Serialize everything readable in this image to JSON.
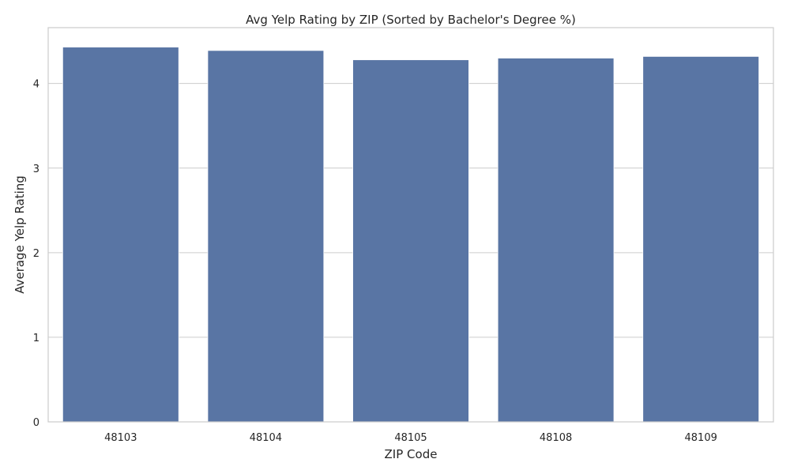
{
  "chart_data": {
    "type": "bar",
    "title": "Avg Yelp Rating by ZIP (Sorted by Bachelor's Degree %)",
    "xlabel": "ZIP Code",
    "ylabel": "Average Yelp Rating",
    "categories": [
      "48103",
      "48104",
      "48105",
      "48108",
      "48109"
    ],
    "values": [
      4.43,
      4.39,
      4.28,
      4.3,
      4.32
    ],
    "ylim": [
      0,
      4.66
    ],
    "yticks": [
      0,
      1,
      2,
      3,
      4
    ],
    "grid": true,
    "bar_color": "#5975a4"
  }
}
